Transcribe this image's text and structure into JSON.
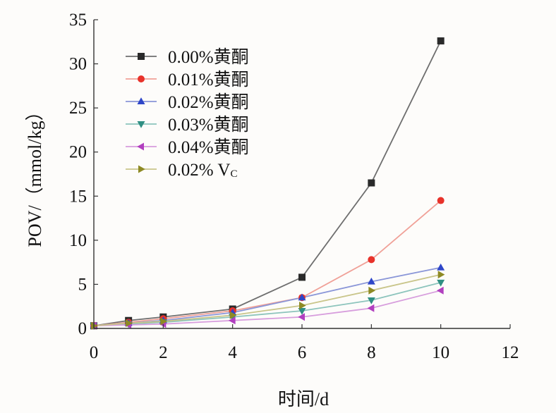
{
  "chart_data": {
    "type": "line",
    "title": "",
    "xlabel": "时间/d",
    "ylabel": "POV/（mmol/kg）",
    "xlim": [
      0,
      12
    ],
    "ylim": [
      0,
      35
    ],
    "xticks": [
      0,
      2,
      4,
      6,
      8,
      10,
      12
    ],
    "yticks": [
      0,
      5,
      10,
      15,
      20,
      25,
      30,
      35
    ],
    "grid": false,
    "legend_position": "top-left",
    "x": [
      0,
      1,
      2,
      4,
      6,
      8,
      10
    ],
    "series": [
      {
        "name": "0.00%黄酮",
        "color": "#2a2a2a",
        "line_color": "#6e6e6e",
        "marker": "square",
        "values": [
          0.3,
          0.9,
          1.3,
          2.2,
          5.8,
          16.5,
          32.6
        ]
      },
      {
        "name": "0.01%黄酮",
        "color": "#e8322a",
        "line_color": "#f0a097",
        "marker": "circle",
        "values": [
          0.3,
          0.7,
          1.1,
          2.0,
          3.5,
          7.8,
          14.5
        ]
      },
      {
        "name": "0.02%黄酮",
        "color": "#2e46c8",
        "line_color": "#8a96d8",
        "marker": "triangle-up",
        "values": [
          0.3,
          0.6,
          0.9,
          1.8,
          3.5,
          5.3,
          6.9
        ]
      },
      {
        "name": "0.03%黄酮",
        "color": "#2f8f83",
        "line_color": "#8cc4bc",
        "marker": "triangle-down",
        "values": [
          0.3,
          0.5,
          0.7,
          1.3,
          2.0,
          3.2,
          5.2
        ]
      },
      {
        "name": "0.04%黄酮",
        "color": "#b13fbf",
        "line_color": "#d79ddd",
        "marker": "triangle-left",
        "values": [
          0.3,
          0.4,
          0.5,
          0.9,
          1.3,
          2.3,
          4.3
        ]
      },
      {
        "name_prefix": "0.02% V",
        "name_subscript": "C",
        "color": "#8e8a24",
        "line_color": "#c9c58a",
        "marker": "triangle-right",
        "values": [
          0.3,
          0.6,
          0.8,
          1.5,
          2.6,
          4.3,
          6.1
        ]
      }
    ]
  }
}
